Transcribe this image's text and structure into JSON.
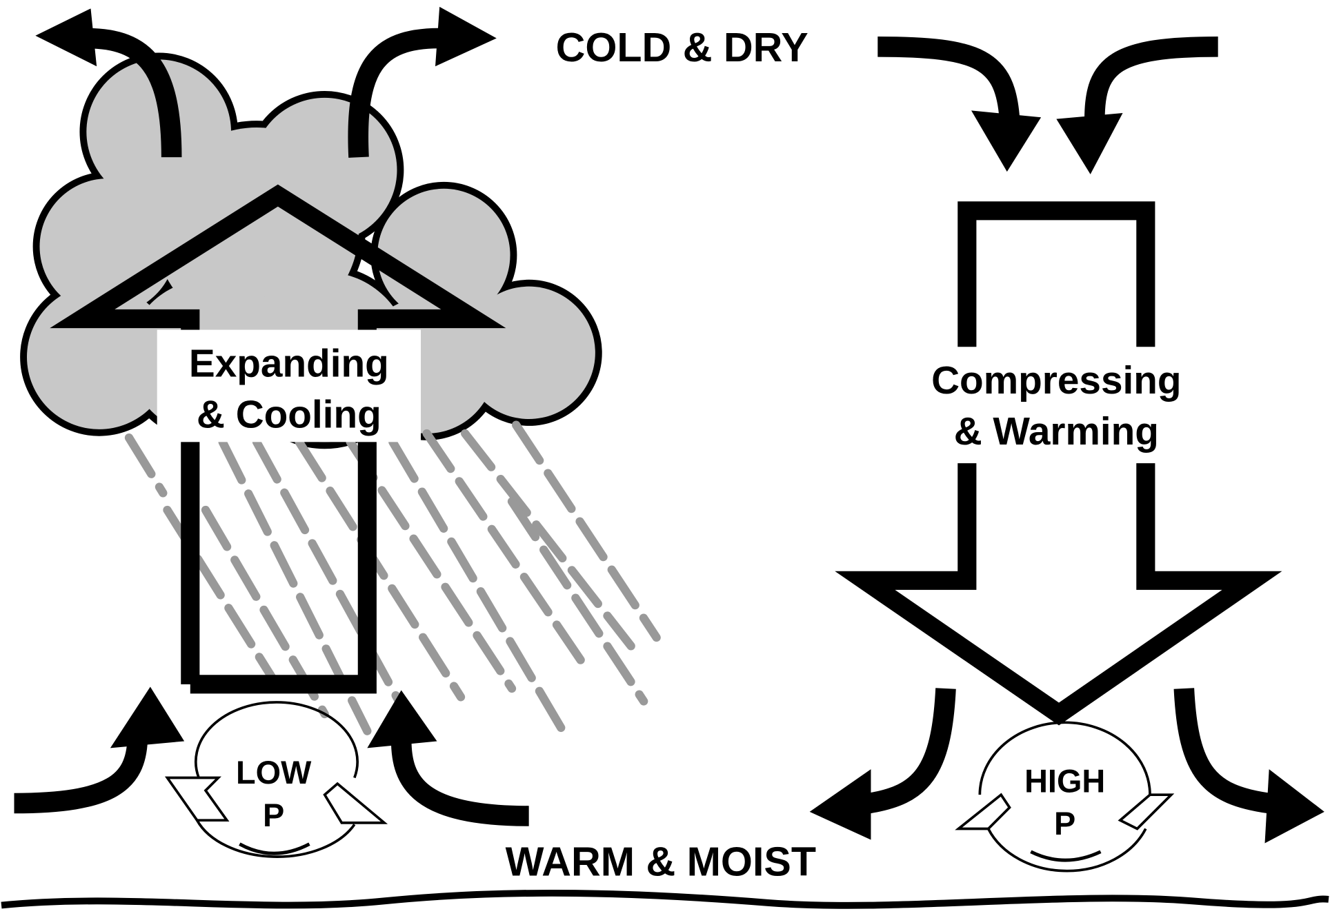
{
  "labels": {
    "top": "COLD & DRY",
    "bottom": "WARM & MOIST"
  },
  "rising": {
    "line1": "Expanding",
    "line2": "& Cooling"
  },
  "sinking": {
    "line1": "Compressing",
    "line2": "& Warming"
  },
  "low": {
    "line1": "LOW",
    "line2": "P"
  },
  "high": {
    "line1": "HIGH",
    "line2": "P"
  }
}
